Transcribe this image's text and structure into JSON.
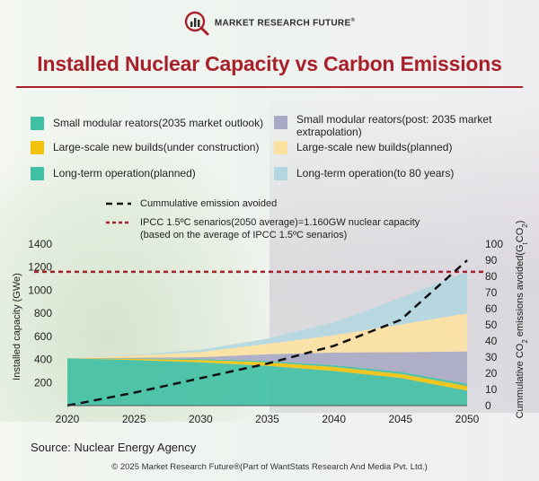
{
  "brand": {
    "name": "MARKET RESEARCH FUTURE",
    "reg": "®"
  },
  "title": "Installed Nuclear Capacity vs Carbon Emissions",
  "legend": [
    {
      "label": "Small modular reators(2035 market outlook)",
      "color": "#3fbfa3"
    },
    {
      "label": "Large-scale new builds(under construction)",
      "color": "#f3c20a"
    },
    {
      "label": "Long-term operation(planned)",
      "color": "#3fbfa3"
    },
    {
      "label": "Small modular reators(post: 2035 market extrapolation)",
      "color": "#a9a8c4"
    },
    {
      "label": "Large-scale new builds(planned)",
      "color": "#fde1a1"
    },
    {
      "label": "Long-term operation(to 80 years)",
      "color": "#b3d7e0"
    }
  ],
  "line_legend": {
    "cumulative": "Cummulative emission avoided",
    "ipcc_line1": "IPCC 1.5ºC senarios(2050 average)=1.160GW nuclear capacity",
    "ipcc_line2": "(based on the average of IPCC 1.5ºC senarios)"
  },
  "chart_data": {
    "type": "area",
    "x": [
      2020,
      2025,
      2030,
      2035,
      2040,
      2045,
      2050
    ],
    "xlim": [
      2020,
      2050
    ],
    "ylim": [
      0,
      1400
    ],
    "y2lim": [
      0,
      100
    ],
    "ylabel": "Installed capacity (GWe)",
    "y2label_parts": [
      "Cummulative CO",
      "2",
      " emissions avoided(G",
      "t",
      "CO",
      "2",
      ")"
    ],
    "y_ticks": [
      200,
      400,
      600,
      800,
      1000,
      1200,
      1400
    ],
    "y2_ticks": [
      0,
      10,
      20,
      30,
      40,
      50,
      60,
      70,
      80,
      90,
      100
    ],
    "x_ticks": [
      2020,
      2025,
      2030,
      2035,
      2040,
      2045,
      2050
    ],
    "series": [
      {
        "name": "Long-term operation(planned)",
        "color": "#3fbfa3",
        "values": [
          410,
          395,
          375,
          345,
          300,
          240,
          130
        ]
      },
      {
        "name": "Large-scale new builds(under construction)",
        "color": "#f3c20a",
        "values": [
          0,
          10,
          20,
          30,
          35,
          35,
          40
        ]
      },
      {
        "name": "Small modular reators(2035 market outlook)",
        "color": "#3fbfa3",
        "values": [
          0,
          3,
          8,
          12,
          15,
          18,
          20
        ]
      },
      {
        "name": "Small modular reators(post: 2035 market extrapolation)",
        "color": "#a9a8c4",
        "values": [
          0,
          7,
          17,
          58,
          110,
          170,
          280
        ]
      },
      {
        "name": "Large-scale new builds(planned)",
        "color": "#fde1a1",
        "values": [
          0,
          20,
          45,
          90,
          150,
          240,
          330
        ]
      },
      {
        "name": "Long-term operation(to 80 years)",
        "color": "#b3d7e0",
        "values": [
          0,
          5,
          20,
          45,
          110,
          230,
          360
        ]
      }
    ],
    "cumulative_line": {
      "name": "Cummulative emission avoided",
      "axis": "right",
      "values": [
        0,
        8,
        17,
        26,
        37,
        53,
        90
      ]
    },
    "ipcc_line": {
      "name": "IPCC 1.5ºC senarios(2050 average)",
      "value": 1160
    }
  },
  "source": "Source: Nuclear Energy Agency",
  "footer": "© 2025 Market Research Future®(Part of WantStats Research And Media Pvt. Ltd.)"
}
